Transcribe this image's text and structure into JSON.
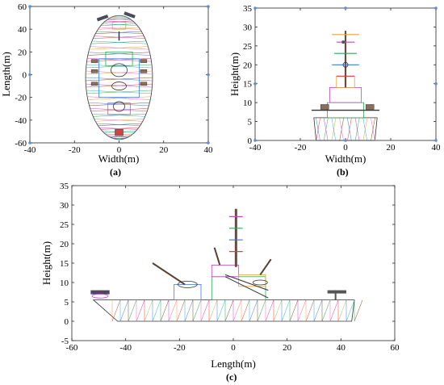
{
  "colors": {
    "mesh": [
      "#e63b3b",
      "#3b7ae6",
      "#2fa84f",
      "#c447c4",
      "#e6a23b",
      "#2bb5c4",
      "#7a4b2b",
      "#f36ab3"
    ],
    "dark": "#333333",
    "axis": "#262626",
    "dot": "#5b8fd6"
  },
  "chart_data": [
    {
      "panel": "(a)",
      "type": "scatter",
      "title": "",
      "xlabel": "Width(m)",
      "ylabel": "Length(m)",
      "xlim": [
        -40,
        40
      ],
      "ylim": [
        -60,
        60
      ],
      "xticks": [
        -40,
        -20,
        0,
        20,
        40
      ],
      "yticks": [
        -60,
        -40,
        -20,
        0,
        20,
        40,
        60
      ],
      "description_points": [
        [
          -40,
          60
        ],
        [
          40,
          60
        ],
        [
          -40,
          0
        ],
        [
          40,
          0
        ],
        [
          -40,
          -60
        ],
        [
          40,
          -60
        ]
      ]
    },
    {
      "panel": "(b)",
      "type": "scatter",
      "title": "",
      "xlabel": "Width(m)",
      "ylabel": "Height(m)",
      "xlim": [
        -40,
        40
      ],
      "ylim": [
        0,
        35
      ],
      "xticks": [
        -40,
        -20,
        0,
        20,
        40
      ],
      "yticks": [
        0,
        5,
        10,
        15,
        20,
        25,
        30,
        35
      ],
      "description_points": [
        [
          -40,
          35
        ],
        [
          0,
          35
        ],
        [
          40,
          35
        ],
        [
          -40,
          15
        ],
        [
          40,
          15
        ],
        [
          -40,
          0
        ],
        [
          0,
          0
        ],
        [
          40,
          0
        ]
      ]
    },
    {
      "panel": "(c)",
      "type": "scatter",
      "title": "",
      "xlabel": "Length(m)",
      "ylabel": "Height(m)",
      "xlim": [
        -60,
        60
      ],
      "ylim": [
        -5,
        35
      ],
      "xticks": [
        -60,
        -40,
        -20,
        0,
        20,
        40,
        60
      ],
      "yticks": [
        -5,
        0,
        5,
        10,
        15,
        20,
        25,
        30,
        35
      ],
      "description_points": []
    }
  ]
}
